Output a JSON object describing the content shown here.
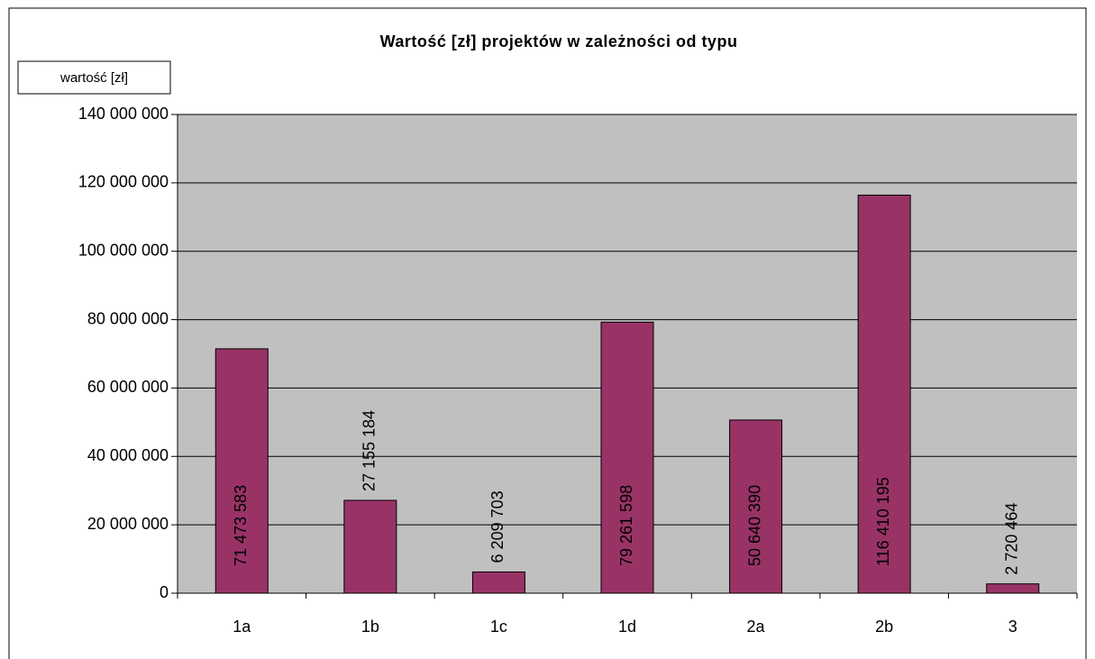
{
  "chart_data": {
    "type": "bar",
    "title": "Wartość [zł] projektów w zależności od typu",
    "y_label": "wartość [zł]",
    "categories": [
      "1a",
      "1b",
      "1c",
      "1d",
      "2a",
      "2b",
      "3"
    ],
    "values": [
      71473583,
      27155184,
      6209703,
      79261598,
      50640390,
      116410195,
      2720464
    ],
    "value_labels": [
      "71 473 583",
      "27 155 184",
      "6 209 703",
      "79 261 598",
      "50 640 390",
      "116 410 195",
      "2 720 464"
    ],
    "color": "#993366",
    "ylim": [
      0,
      140000000
    ],
    "yticks": [
      {
        "value": 0,
        "label": "0"
      },
      {
        "value": 20000000,
        "label": "20 000 000"
      },
      {
        "value": 40000000,
        "label": "40 000 000"
      },
      {
        "value": 60000000,
        "label": "60 000 000"
      },
      {
        "value": 80000000,
        "label": "80 000 000"
      },
      {
        "value": 100000000,
        "label": "100 000 000"
      },
      {
        "value": 120000000,
        "label": "120 000 000"
      },
      {
        "value": 140000000,
        "label": "140 000 000"
      }
    ],
    "grid": true
  }
}
